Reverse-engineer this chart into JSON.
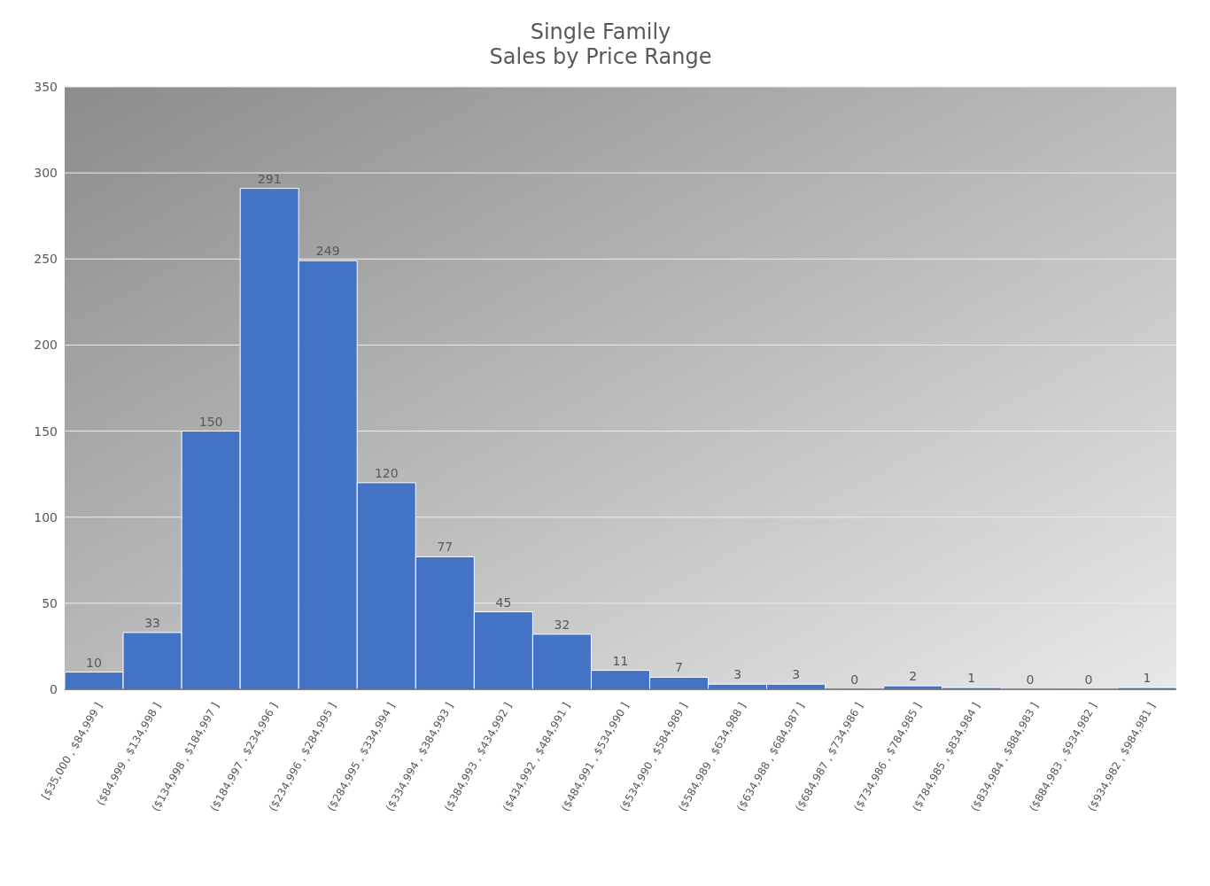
{
  "chart_data": {
    "type": "bar",
    "title": "Single Family\nSales by Price Range",
    "categories": [
      "[$35,000 , $84,999 ]",
      "($84,999 , $134,998 ]",
      "($134,998 , $184,997 ]",
      "($184,997 , $234,996 ]",
      "($234,996 , $284,995 ]",
      "($284,995 , $334,994 ]",
      "($334,994 , $384,993 ]",
      "($384,993 , $434,992 ]",
      "($434,992 , $484,991 ]",
      "($484,991 , $534,990 ]",
      "($534,990 , $584,989 ]",
      "($584,989 , $634,988 ]",
      "($634,988 , $684,987 ]",
      "($684,987 , $734,986 ]",
      "($734,986 , $784,985 ]",
      "($784,985 , $834,984 ]",
      "($834,984 , $884,983 ]",
      "($884,983 , $934,982 ]",
      "($934,982 , $984,981 ]"
    ],
    "values": [
      10,
      33,
      150,
      291,
      249,
      120,
      77,
      45,
      32,
      11,
      7,
      3,
      3,
      0,
      2,
      1,
      0,
      0,
      1
    ],
    "color": "#4472c4",
    "ylim": [
      0,
      350
    ],
    "yticks": [
      0,
      50,
      100,
      150,
      200,
      250,
      300,
      350
    ],
    "grid": "y",
    "data_labels": true
  }
}
